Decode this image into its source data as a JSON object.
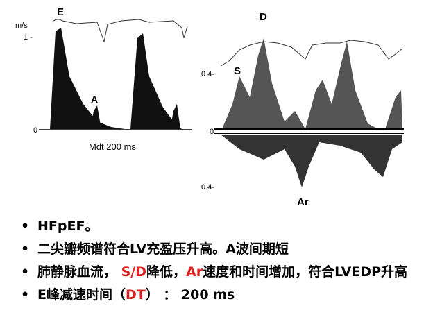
{
  "figure": {
    "left": {
      "unit": "m/s",
      "tick_top": "1 -",
      "tick_zero": "0",
      "wave_e": "E",
      "wave_a": "A",
      "caption": "Mdt 200 ms"
    },
    "right": {
      "wave_d": "D",
      "wave_s": "S",
      "tick_top": "0.4-",
      "tick_zero": "0",
      "tick_bottom": "0.4-",
      "wave_ar": "Ar"
    }
  },
  "bullets": [
    [
      {
        "text": "HFpEF。",
        "color": "#000000"
      }
    ],
    [
      {
        "text": "二尖瓣频谱符合LV充盈压升高。A波间期短",
        "color": "#000000"
      }
    ],
    [
      {
        "text": "肺静脉血流， ",
        "color": "#000000"
      },
      {
        "text": "S/D",
        "color": "#e02020"
      },
      {
        "text": "降低，",
        "color": "#000000"
      },
      {
        "text": "Ar",
        "color": "#e02020"
      },
      {
        "text": "速度和时间增加，符合LVEDP升高",
        "color": "#000000"
      }
    ],
    [
      {
        "text": "E峰减速时间（",
        "color": "#000000"
      },
      {
        "text": "DT",
        "color": "#e02020"
      },
      {
        "text": "） ： 200 ms",
        "color": "#000000"
      }
    ]
  ]
}
